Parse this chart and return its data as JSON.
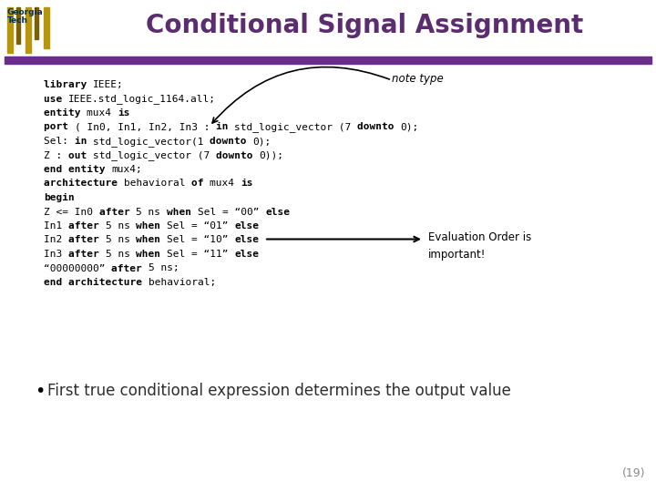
{
  "title": "Conditional Signal Assignment",
  "title_color": "#5B2C6F",
  "title_fontsize": 20,
  "bar_color": "#6B2D8B",
  "bg_color": "#FFFFFF",
  "slide_number": "(19)",
  "note_type_label": "note type",
  "eval_order_text": "Evaluation Order is\nimportant!",
  "bullet_text": "First true conditional expression determines the output value",
  "code_structure": [
    {
      "y": 0,
      "parts": [
        {
          "style": "bold",
          "text": "library "
        },
        {
          "style": "normal",
          "text": "IEEE;"
        }
      ]
    },
    {
      "y": 1,
      "parts": [
        {
          "style": "bold",
          "text": "use "
        },
        {
          "style": "normal",
          "text": "IEEE.std_logic_1164.all;"
        }
      ]
    },
    {
      "y": 2,
      "parts": [
        {
          "style": "bold",
          "text": "entity "
        },
        {
          "style": "normal",
          "text": "mux4 "
        },
        {
          "style": "bold",
          "text": "is"
        }
      ]
    },
    {
      "y": 3,
      "parts": [
        {
          "style": "bold",
          "text": "port "
        },
        {
          "style": "normal",
          "text": "( In0, In1, In2, In3 : "
        },
        {
          "style": "bold",
          "text": "in "
        },
        {
          "style": "normal",
          "text": "std_logic_vector (7 "
        },
        {
          "style": "bold",
          "text": "downto "
        },
        {
          "style": "normal",
          "text": "0);"
        }
      ]
    },
    {
      "y": 4,
      "parts": [
        {
          "style": "normal",
          "text": "Sel: "
        },
        {
          "style": "bold",
          "text": "in "
        },
        {
          "style": "normal",
          "text": "std_logic_vector(1 "
        },
        {
          "style": "bold",
          "text": "downto "
        },
        {
          "style": "normal",
          "text": "0);"
        }
      ]
    },
    {
      "y": 5,
      "parts": [
        {
          "style": "normal",
          "text": "Z : "
        },
        {
          "style": "bold",
          "text": "out "
        },
        {
          "style": "normal",
          "text": "std_logic_vector (7 "
        },
        {
          "style": "bold",
          "text": "downto "
        },
        {
          "style": "normal",
          "text": "0));"
        }
      ]
    },
    {
      "y": 6,
      "parts": [
        {
          "style": "bold",
          "text": "end entity "
        },
        {
          "style": "normal",
          "text": "mux4;"
        }
      ]
    },
    {
      "y": 7,
      "parts": [
        {
          "style": "bold",
          "text": "architecture "
        },
        {
          "style": "normal",
          "text": "behavioral "
        },
        {
          "style": "bold",
          "text": "of "
        },
        {
          "style": "normal",
          "text": "mux4 "
        },
        {
          "style": "bold",
          "text": "is"
        }
      ]
    },
    {
      "y": 8,
      "parts": [
        {
          "style": "bold",
          "text": "begin"
        }
      ]
    },
    {
      "y": 9,
      "parts": [
        {
          "style": "normal",
          "text": "Z <= In0 "
        },
        {
          "style": "bold",
          "text": "after "
        },
        {
          "style": "normal",
          "text": "5 ns "
        },
        {
          "style": "bold",
          "text": "when "
        },
        {
          "style": "normal",
          "text": "Sel = “00” "
        },
        {
          "style": "bold",
          "text": "else"
        }
      ]
    },
    {
      "y": 10,
      "parts": [
        {
          "style": "normal",
          "text": "In1 "
        },
        {
          "style": "bold",
          "text": "after "
        },
        {
          "style": "normal",
          "text": "5 ns "
        },
        {
          "style": "bold",
          "text": "when "
        },
        {
          "style": "normal",
          "text": "Sel = “01” "
        },
        {
          "style": "bold",
          "text": "else"
        }
      ]
    },
    {
      "y": 11,
      "parts": [
        {
          "style": "normal",
          "text": "In2 "
        },
        {
          "style": "bold",
          "text": "after "
        },
        {
          "style": "normal",
          "text": "5 ns "
        },
        {
          "style": "bold",
          "text": "when "
        },
        {
          "style": "normal",
          "text": "Sel = “10” "
        },
        {
          "style": "bold",
          "text": "else"
        }
      ]
    },
    {
      "y": 12,
      "parts": [
        {
          "style": "normal",
          "text": "In3 "
        },
        {
          "style": "bold",
          "text": "after "
        },
        {
          "style": "normal",
          "text": "5 ns "
        },
        {
          "style": "bold",
          "text": "when "
        },
        {
          "style": "normal",
          "text": "Sel = “11” "
        },
        {
          "style": "bold",
          "text": "else"
        }
      ]
    },
    {
      "y": 13,
      "parts": [
        {
          "style": "normal",
          "text": "“00000000” "
        },
        {
          "style": "bold",
          "text": "after "
        },
        {
          "style": "normal",
          "text": "5 ns;"
        }
      ]
    },
    {
      "y": 14,
      "parts": [
        {
          "style": "bold",
          "text": "end architecture "
        },
        {
          "style": "normal",
          "text": "behavioral;"
        }
      ]
    }
  ]
}
